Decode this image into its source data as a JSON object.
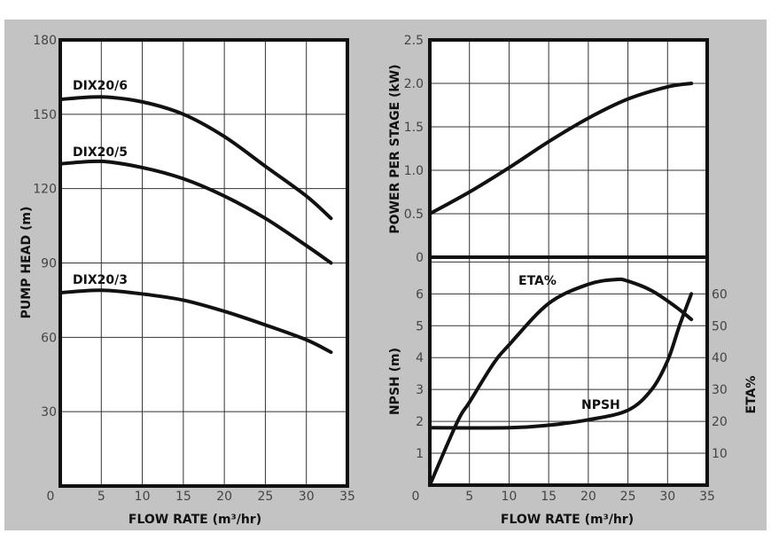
{
  "chart_data": [
    {
      "type": "line",
      "xlabel": "FLOW RATE (m³/hr)",
      "ylabel": "PUMP HEAD (m)",
      "xlim": [
        0,
        35
      ],
      "ylim": [
        0,
        180
      ],
      "xticks": [
        5,
        10,
        15,
        20,
        25,
        30,
        35
      ],
      "yticks": [
        30,
        60,
        90,
        120,
        150,
        180
      ],
      "origin_label": "0",
      "grid": true,
      "series": [
        {
          "name": "DIX20/6",
          "x": [
            0,
            5,
            10,
            15,
            20,
            25,
            30,
            33
          ],
          "y": [
            156,
            157,
            155,
            150,
            141,
            129,
            117,
            108
          ]
        },
        {
          "name": "DIX20/5",
          "x": [
            0,
            5,
            10,
            15,
            20,
            25,
            30,
            33
          ],
          "y": [
            130,
            131,
            128.5,
            124,
            117,
            108,
            97,
            90
          ]
        },
        {
          "name": "DIX20/3",
          "x": [
            0,
            5,
            10,
            15,
            20,
            25,
            30,
            33
          ],
          "y": [
            78,
            79,
            77.5,
            75,
            70.5,
            65,
            59,
            54
          ]
        }
      ]
    },
    {
      "type": "line",
      "ylabel": "POWER PER STAGE (kW)",
      "xlim": [
        0,
        35
      ],
      "ylim": [
        0,
        2.5
      ],
      "yticks": [
        "0",
        "0.5",
        "1.0",
        "1.5",
        "2.0",
        "2.5"
      ],
      "grid": true,
      "series": [
        {
          "x": [
            0,
            5,
            10,
            15,
            20,
            25,
            30,
            33
          ],
          "y": [
            0.5,
            0.75,
            1.03,
            1.33,
            1.6,
            1.82,
            1.96,
            2.0
          ]
        }
      ]
    },
    {
      "type": "line",
      "xlabel": "FLOW RATE (m³/hr)",
      "ylabel": "NPSH (m)",
      "y2label": "ETA%",
      "xlim": [
        0,
        35
      ],
      "ylim": [
        0,
        7.15
      ],
      "y2lim": [
        0,
        71.5
      ],
      "xticks": [
        5,
        10,
        15,
        20,
        25,
        30,
        35
      ],
      "yticks": [
        1,
        2,
        3,
        4,
        5,
        6
      ],
      "y2ticks": [
        10,
        20,
        30,
        40,
        50,
        60
      ],
      "origin_label": "0",
      "grid": true,
      "series": [
        {
          "name": "NPSH",
          "axis": "left",
          "x": [
            0,
            10,
            15,
            20,
            25,
            28,
            30,
            31.5,
            33
          ],
          "y": [
            1.8,
            1.8,
            1.88,
            2.05,
            2.35,
            3.0,
            3.9,
            5.0,
            6.0
          ]
        },
        {
          "name": "ETA%",
          "axis": "right",
          "x": [
            0,
            3.5,
            5,
            8,
            10,
            15,
            20,
            23.5,
            25,
            28,
            31,
            33
          ],
          "y": [
            0,
            20,
            26,
            38,
            44,
            57,
            63,
            64.5,
            64,
            61,
            56,
            52
          ]
        }
      ]
    }
  ]
}
